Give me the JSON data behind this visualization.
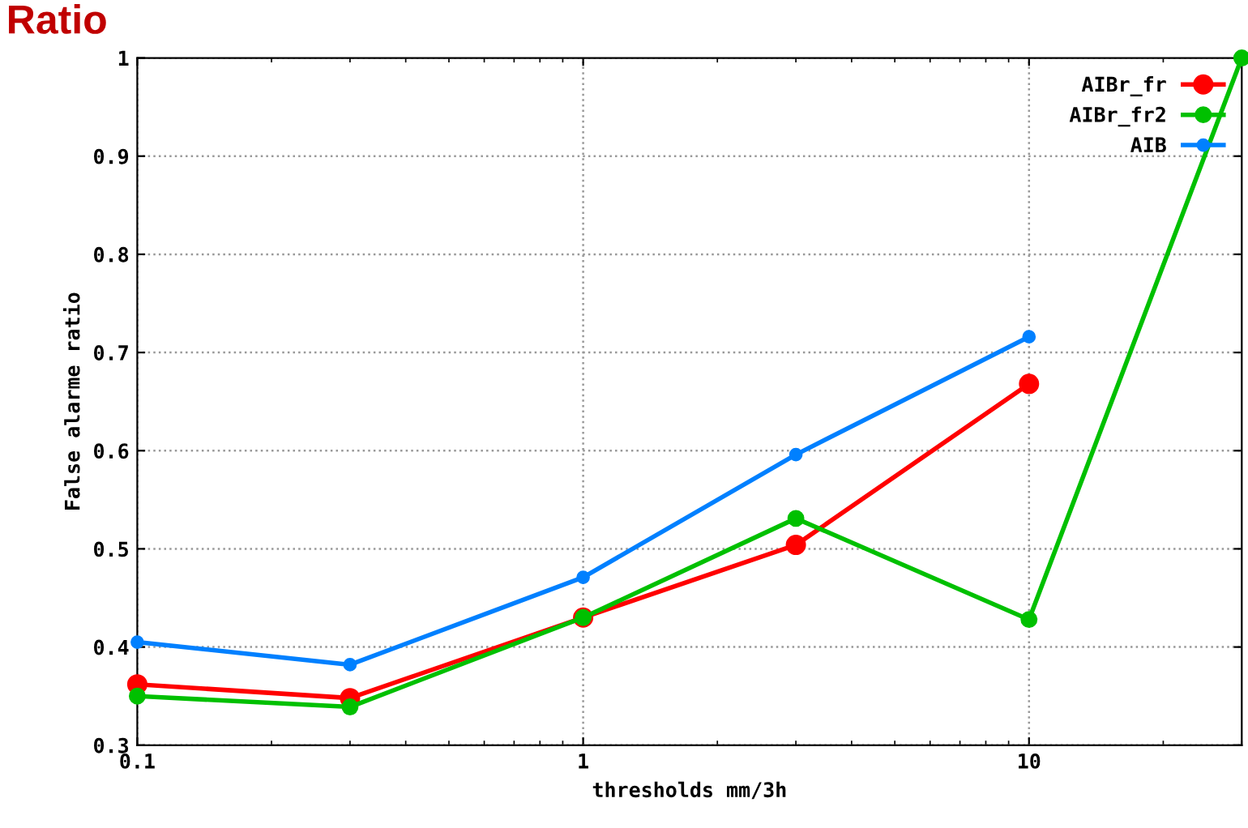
{
  "chart_data": {
    "type": "line",
    "title": "Ratio",
    "xlabel": "thresholds mm/3h",
    "ylabel": "False alarme ratio",
    "x": [
      0.1,
      0.3,
      1,
      3,
      10,
      30
    ],
    "series": [
      {
        "name": "AIBr_fr",
        "color": "#ff0000",
        "values": [
          0.362,
          0.348,
          0.43,
          0.504,
          0.668,
          null
        ]
      },
      {
        "name": "AIBr_fr2",
        "color": "#00c000",
        "values": [
          0.35,
          0.339,
          0.43,
          0.531,
          0.428,
          1.0
        ]
      },
      {
        "name": "AIB",
        "color": "#0080ff",
        "values": [
          0.405,
          0.382,
          0.471,
          0.596,
          0.716,
          null
        ]
      }
    ],
    "log": "x",
    "xlim": [
      0.1,
      30
    ],
    "xticks": [
      0.1,
      1,
      10
    ],
    "ylim": [
      0.3,
      1
    ],
    "yticks": [
      0.3,
      0.4,
      0.5,
      0.6,
      0.7,
      0.8,
      0.9,
      1
    ],
    "grid": true,
    "legend": "top right",
    "marker": "circle",
    "line_style": "solid"
  }
}
